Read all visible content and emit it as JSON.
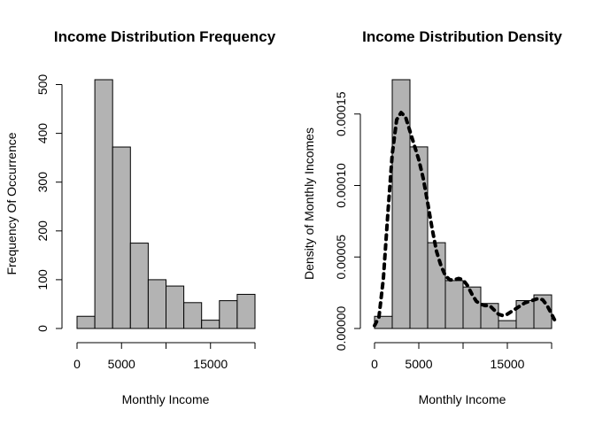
{
  "chart_data": [
    {
      "type": "bar",
      "title": "Income Distribution Frequency",
      "xlabel": "Monthly Income",
      "ylabel": "Frequency Of Occurrence",
      "bin_edges": [
        0,
        2000,
        4000,
        6000,
        8000,
        10000,
        12000,
        14000,
        16000,
        18000,
        20000
      ],
      "values": [
        25,
        510,
        372,
        175,
        100,
        87,
        53,
        17,
        57,
        70
      ],
      "xlim": [
        0,
        20000
      ],
      "ylim": [
        0,
        510
      ],
      "x_ticks": [
        0,
        5000,
        15000
      ],
      "y_ticks": [
        0,
        100,
        200,
        300,
        400,
        500
      ],
      "grid": false,
      "bar_color": "#b3b3b3"
    },
    {
      "type": "bar",
      "title": "Income Distribution Density",
      "xlabel": "Monthly Income",
      "ylabel": "Density of Monthly Incomes",
      "bin_edges": [
        0,
        2000,
        4000,
        6000,
        8000,
        10000,
        12000,
        14000,
        16000,
        18000,
        20000
      ],
      "values": [
        8.5e-06,
        0.000174,
        0.000127,
        6e-05,
        3.35e-05,
        2.9e-05,
        1.75e-05,
        5.5e-06,
        1.95e-05,
        2.35e-05
      ],
      "density_line": {
        "x": [
          0,
          500,
          1000,
          1500,
          2000,
          2500,
          3000,
          3500,
          4000,
          4500,
          5000,
          5500,
          6000,
          6500,
          7000,
          7500,
          8000,
          8500,
          9000,
          9500,
          10000,
          10500,
          11000,
          11500,
          12000,
          12500,
          13000,
          13500,
          14000,
          14500,
          15000,
          15500,
          16000,
          16500,
          17000,
          17500,
          18000,
          18500,
          19000,
          19500,
          20000,
          20500
        ],
        "y": [
          2e-06,
          8e-06,
          3.5e-05,
          8e-05,
          0.000122,
          0.000146,
          0.000151,
          0.000148,
          0.000138,
          0.000128,
          0.000118,
          0.000105,
          8.8e-05,
          7e-05,
          5.4e-05,
          4.4e-05,
          3.7e-05,
          3.4e-05,
          3.4e-05,
          3.5e-05,
          3.4e-05,
          3e-05,
          2.4e-05,
          1.9e-05,
          1.7e-05,
          1.6e-05,
          1.6e-05,
          1.3e-05,
          1e-05,
          9e-06,
          1e-05,
          1.2e-05,
          1.4e-05,
          1.6e-05,
          1.8e-05,
          1.9e-05,
          2e-05,
          2.1e-05,
          2e-05,
          1.6e-05,
          1e-05,
          4e-06
        ]
      },
      "xlim": [
        0,
        20000
      ],
      "ylim": [
        0,
        0.000174
      ],
      "x_ticks": [
        0,
        5000,
        15000
      ],
      "y_ticks": [
        0,
        5e-05,
        0.0001,
        0.00015
      ],
      "y_tick_labels": [
        "0.00000",
        "0.00005",
        "0.00010",
        "0.00015"
      ],
      "grid": false,
      "bar_color": "#b3b3b3"
    }
  ]
}
